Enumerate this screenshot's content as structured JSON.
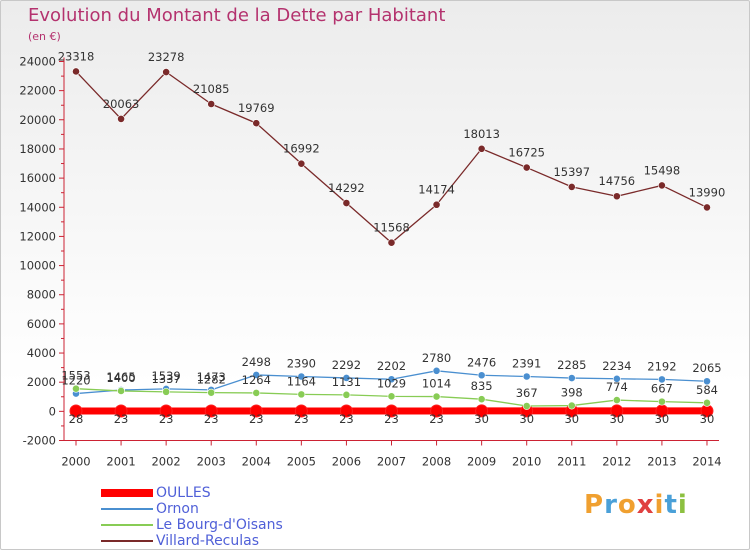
{
  "title": "Evolution du Montant de la Dette par Habitant",
  "unit_label": "(en €)",
  "brand": {
    "text": "Proxiti",
    "colors": [
      "#f0a030",
      "#4aa0d8",
      "#f0a030",
      "#e04040",
      "#f0a030",
      "#4aa0d8",
      "#8cc040"
    ]
  },
  "chart_data": {
    "type": "line",
    "title": "Evolution du Montant de la Dette par Habitant",
    "ylabel": "(en €)",
    "xlabel": "",
    "x": [
      "2000",
      "2001",
      "2002",
      "2003",
      "2004",
      "2005",
      "2006",
      "2007",
      "2008",
      "2009",
      "2010",
      "2011",
      "2012",
      "2013",
      "2014"
    ],
    "ylim": [
      -2000,
      24000
    ],
    "yticks": [
      "-2000",
      "0",
      "2000",
      "4000",
      "6000",
      "8000",
      "10000",
      "12000",
      "14000",
      "16000",
      "18000",
      "20000",
      "22000",
      "24000"
    ],
    "grid": false,
    "legend_position": "bottom-left",
    "series": [
      {
        "name": "OULLES",
        "color": "#ff0000",
        "values": [
          28,
          23,
          23,
          23,
          23,
          23,
          23,
          23,
          23,
          30,
          30,
          30,
          30,
          30,
          30
        ],
        "labels": [
          "28",
          "23",
          "23",
          "23",
          "23",
          "23",
          "23",
          "23",
          "23",
          "30",
          "30",
          "30",
          "30",
          "30",
          "30"
        ]
      },
      {
        "name": "Ornon",
        "color": "#4a8fd0",
        "values": [
          1220,
          1465,
          1539,
          1473,
          2498,
          2390,
          2292,
          2202,
          2780,
          2476,
          2391,
          2285,
          2234,
          2192,
          2065
        ],
        "labels": [
          "1220",
          "1465",
          "1539",
          "1473",
          "2498",
          "2390",
          "2292",
          "2202",
          "2780",
          "2476",
          "2391",
          "2285",
          "2234",
          "2192",
          "2065"
        ]
      },
      {
        "name": "Le Bourg-d'Oisans",
        "color": "#88cc55",
        "values": [
          1553,
          1400,
          1337,
          1282,
          1264,
          1164,
          1131,
          1029,
          1014,
          835,
          367,
          398,
          774,
          667,
          584
        ],
        "labels": [
          "1553",
          "1400",
          "1337",
          "1282",
          "1264",
          "1164",
          "1131",
          "1029",
          "1014",
          "835",
          "367",
          "398",
          "774",
          "667",
          "584"
        ]
      },
      {
        "name": "Villard-Reculas",
        "color": "#7a2a2a",
        "values": [
          23318,
          20063,
          23278,
          21085,
          19769,
          16992,
          14292,
          11568,
          14174,
          18013,
          16725,
          15397,
          14756,
          15498,
          13990
        ],
        "labels": [
          "23318",
          "20063",
          "23278",
          "21085",
          "19769",
          "16992",
          "14292",
          "11568",
          "14174",
          "18013",
          "16725",
          "15397",
          "14756",
          "15498",
          "13990"
        ]
      }
    ]
  }
}
